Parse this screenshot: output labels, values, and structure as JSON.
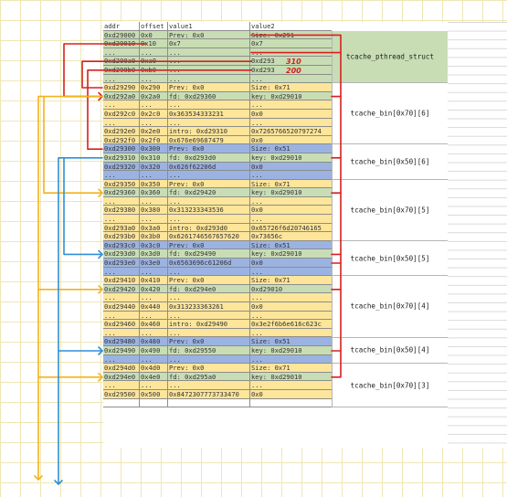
{
  "table": {
    "headers": [
      "addr",
      "offset",
      "value1",
      "value2"
    ],
    "rows": [
      {
        "a": "0xd29000",
        "o": "0x0",
        "v1": "Prev: 0x0",
        "v2": "Size: 0x291",
        "c": "fill-green"
      },
      {
        "a": "0xd29010",
        "o": "0x10",
        "v1": "0x7",
        "v2": "0x7",
        "c": "fill-green"
      },
      {
        "a": "...",
        "o": "...",
        "v1": "...",
        "v2": "...",
        "c": "fill-green"
      },
      {
        "a": "0xd290a0",
        "o": "0xa0",
        "v1": "...",
        "v2": "0xd293",
        "c": "fill-green"
      },
      {
        "a": "0xd290b0",
        "o": "0xb0",
        "v1": "...",
        "v2": "0xd293",
        "c": "fill-green"
      },
      {
        "a": "...",
        "o": "...",
        "v1": "...",
        "v2": "...",
        "c": "fill-green"
      },
      {
        "a": "0xd29290",
        "o": "0x290",
        "v1": "Prev: 0x0",
        "v2": "Size: 0x71",
        "c": "fill-yellow"
      },
      {
        "a": "0xd292a0",
        "o": "0x2a0",
        "v1": "fd: 0xd29360",
        "v2": "key: 0xd29010",
        "c": "fill-green"
      },
      {
        "a": "...",
        "o": "...",
        "v1": "...",
        "v2": "...",
        "c": "fill-yellow"
      },
      {
        "a": "0xd292c0",
        "o": "0x2c0",
        "v1": "0x363534333231",
        "v2": "0x0",
        "c": "fill-yellow"
      },
      {
        "a": "...",
        "o": "...",
        "v1": "...",
        "v2": "...",
        "c": "fill-yellow"
      },
      {
        "a": "0xd292e0",
        "o": "0x2e0",
        "v1": "intro: 0xd29310",
        "v2": "0x7265766520797274",
        "c": "fill-yellow"
      },
      {
        "a": "0xd292f0",
        "o": "0x2f0",
        "v1": "0x676e69687479",
        "v2": "0x0",
        "c": "fill-yellow"
      },
      {
        "a": "0xd29300",
        "o": "0x300",
        "v1": "Prev: 0x0",
        "v2": "Size: 0x51",
        "c": "fill-blue"
      },
      {
        "a": "0xd29310",
        "o": "0x310",
        "v1": "fd: 0xd293d0",
        "v2": "key: 0xd29010",
        "c": "fill-green"
      },
      {
        "a": "0xd29320",
        "o": "0x320",
        "v1": "0x626f62206d",
        "v2": "0x0",
        "c": "fill-blue"
      },
      {
        "a": "...",
        "o": "...",
        "v1": "...",
        "v2": "...",
        "c": "fill-blue"
      },
      {
        "a": "0xd29350",
        "o": "0x350",
        "v1": "Prev: 0x0",
        "v2": "Size: 0x71",
        "c": "fill-yellow"
      },
      {
        "a": "0xd29360",
        "o": "0x360",
        "v1": "fd: 0xd29420",
        "v2": "key: 0xd29010",
        "c": "fill-green"
      },
      {
        "a": "...",
        "o": "...",
        "v1": "...",
        "v2": "...",
        "c": "fill-yellow"
      },
      {
        "a": "0xd29380",
        "o": "0x380",
        "v1": "0x313233343536",
        "v2": "0x0",
        "c": "fill-yellow"
      },
      {
        "a": "...",
        "o": "...",
        "v1": "...",
        "v2": "...",
        "c": "fill-yellow"
      },
      {
        "a": "0xd293a0",
        "o": "0x3a0",
        "v1": "intro: 0xd293d0",
        "v2": "0x65726f6d20746165",
        "c": "fill-yellow"
      },
      {
        "a": "0xd293b0",
        "o": "0x3b0",
        "v1": "0x6261746567657620",
        "v2": "0x73656c",
        "c": "fill-yellow"
      },
      {
        "a": "0xd293c0",
        "o": "0x3c0",
        "v1": "Prev: 0x0",
        "v2": "Size: 0x51",
        "c": "fill-blue"
      },
      {
        "a": "0xd293d0",
        "o": "0x3d0",
        "v1": "fd: 0xd29490",
        "v2": "key: 0xd29010",
        "c": "fill-green"
      },
      {
        "a": "0xd293e0",
        "o": "0x3e0",
        "v1": "0x6563696c61206d",
        "v2": "0x0",
        "c": "fill-blue"
      },
      {
        "a": "...",
        "o": "...",
        "v1": "...",
        "v2": "...",
        "c": "fill-blue"
      },
      {
        "a": "0xd29410",
        "o": "0x410",
        "v1": "Prev: 0x0",
        "v2": "Size: 0x71",
        "c": "fill-yellow"
      },
      {
        "a": "0xd29420",
        "o": "0x420",
        "v1": "fd: 0xd294e0",
        "v2": "0xd29010",
        "c": "fill-green"
      },
      {
        "a": "...",
        "o": "...",
        "v1": "...",
        "v2": "...",
        "c": "fill-yellow"
      },
      {
        "a": "0xd29440",
        "o": "0x440",
        "v1": "0x313233363261",
        "v2": "0x0",
        "c": "fill-yellow"
      },
      {
        "a": "...",
        "o": "...",
        "v1": "...",
        "v2": "...",
        "c": "fill-yellow"
      },
      {
        "a": "0xd29460",
        "o": "0x460",
        "v1": "intro: 0xd29490",
        "v2": "0x3e2f6b6e616c623c",
        "c": "fill-yellow"
      },
      {
        "a": "...",
        "o": "...",
        "v1": "...",
        "v2": "...",
        "c": "fill-yellow"
      },
      {
        "a": "0xd29480",
        "o": "0x480",
        "v1": "Prev: 0x0",
        "v2": "Size: 0x51",
        "c": "fill-blue"
      },
      {
        "a": "0xd29490",
        "o": "0x490",
        "v1": "fd: 0xd29550",
        "v2": "key: 0xd29010",
        "c": "fill-green"
      },
      {
        "a": "...",
        "o": "...",
        "v1": "...",
        "v2": "...",
        "c": "fill-blue"
      },
      {
        "a": "0xd294d0",
        "o": "0x4d0",
        "v1": "Prev: 0x0",
        "v2": "Size: 0x71",
        "c": "fill-yellow"
      },
      {
        "a": "0xd294e0",
        "o": "0x4e0",
        "v1": "fd: 0xd295a0",
        "v2": "key: 0xd29010",
        "c": "fill-green"
      },
      {
        "a": "...",
        "o": "...",
        "v1": "...",
        "v2": "...",
        "c": "fill-yellow"
      },
      {
        "a": "0xd29500",
        "o": "0x500",
        "v1": "0x8472307773733470",
        "v2": "0x0",
        "c": "fill-yellow"
      },
      {
        "a": "",
        "o": "",
        "v1": "",
        "v2": "",
        "c": "fill-white"
      }
    ]
  },
  "groups": [
    {
      "label": "tcache_pthread_struct",
      "start": 0,
      "end": 6,
      "c": "fill-green"
    },
    {
      "label": "tcache_bin[0x70][6]",
      "start": 6,
      "end": 13,
      "c": "fill-white"
    },
    {
      "label": "tcache_bin[0x50][6]",
      "start": 13,
      "end": 17,
      "c": "fill-white"
    },
    {
      "label": "tcache_bin[0x70][5]",
      "start": 17,
      "end": 24,
      "c": "fill-white"
    },
    {
      "label": "tcache_bin[0x50][5]",
      "start": 24,
      "end": 28,
      "c": "fill-white"
    },
    {
      "label": "tcache_bin[0x70][4]",
      "start": 28,
      "end": 35,
      "c": "fill-white"
    },
    {
      "label": "tcache_bin[0x50][4]",
      "start": 35,
      "end": 38,
      "c": "fill-white"
    },
    {
      "label": "tcache_bin[0x70][3]",
      "start": 38,
      "end": 43,
      "c": "fill-white"
    }
  ],
  "annotations": {
    "mark_310": "310",
    "mark_200": "200"
  },
  "colors": {
    "red_pointer": "#d62020",
    "orange_chain": "#f2b21f",
    "blue_chain": "#2f8fd8"
  }
}
